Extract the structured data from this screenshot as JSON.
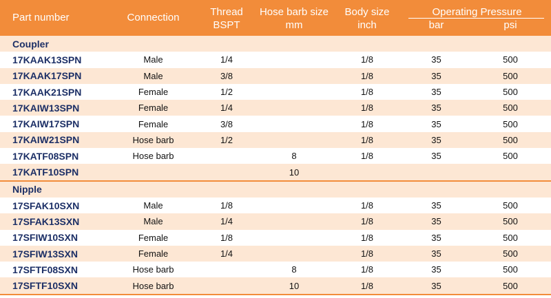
{
  "header": {
    "part_number": "Part number",
    "connection": "Connection",
    "thread_line1": "Thread",
    "thread_line2": "BSPT",
    "hose_line1": "Hose barb size",
    "hose_line2": "mm",
    "body_line1": "Body size",
    "body_line2": "inch",
    "operating_pressure": "Operating Pressure",
    "bar": "bar",
    "psi": "psi"
  },
  "colors": {
    "accent": "#f28c3a",
    "stripe": "#fde7d4",
    "part_text": "#1c2f66"
  },
  "sections": [
    {
      "title": "Coupler",
      "rows": [
        {
          "part": "17KAAK13SPN",
          "connection": "Male",
          "thread": "1/4",
          "hose": "",
          "body": "1/8",
          "bar": "35",
          "psi": "500"
        },
        {
          "part": "17KAAK17SPN",
          "connection": "Male",
          "thread": "3/8",
          "hose": "",
          "body": "1/8",
          "bar": "35",
          "psi": "500"
        },
        {
          "part": "17KAAK21SPN",
          "connection": "Female",
          "thread": "1/2",
          "hose": "",
          "body": "1/8",
          "bar": "35",
          "psi": "500"
        },
        {
          "part": "17KAIW13SPN",
          "connection": "Female",
          "thread": "1/4",
          "hose": "",
          "body": "1/8",
          "bar": "35",
          "psi": "500"
        },
        {
          "part": "17KAIW17SPN",
          "connection": "Female",
          "thread": "3/8",
          "hose": "",
          "body": "1/8",
          "bar": "35",
          "psi": "500"
        },
        {
          "part": "17KAIW21SPN",
          "connection": "Hose barb",
          "thread": "1/2",
          "hose": "",
          "body": "1/8",
          "bar": "35",
          "psi": "500"
        },
        {
          "part": "17KATF08SPN",
          "connection": "Hose barb",
          "thread": "",
          "hose": "8",
          "body": "1/8",
          "bar": "35",
          "psi": "500"
        },
        {
          "part": "17KATF10SPN",
          "connection": "",
          "thread": "",
          "hose": "10",
          "body": "",
          "bar": "",
          "psi": ""
        }
      ]
    },
    {
      "title": "Nipple",
      "rows": [
        {
          "part": "17SFAK10SXN",
          "connection": "Male",
          "thread": "1/8",
          "hose": "",
          "body": "1/8",
          "bar": "35",
          "psi": "500"
        },
        {
          "part": "17SFAK13SXN",
          "connection": "Male",
          "thread": "1/4",
          "hose": "",
          "body": "1/8",
          "bar": "35",
          "psi": "500"
        },
        {
          "part": "17SFIW10SXN",
          "connection": "Female",
          "thread": "1/8",
          "hose": "",
          "body": "1/8",
          "bar": "35",
          "psi": "500"
        },
        {
          "part": "17SFIW13SXN",
          "connection": "Female",
          "thread": "1/4",
          "hose": "",
          "body": "1/8",
          "bar": "35",
          "psi": "500"
        },
        {
          "part": "17SFTF08SXN",
          "connection": "Hose barb",
          "thread": "",
          "hose": "8",
          "body": "1/8",
          "bar": "35",
          "psi": "500"
        },
        {
          "part": "17SFTF10SXN",
          "connection": "Hose barb",
          "thread": "",
          "hose": "10",
          "body": "1/8",
          "bar": "35",
          "psi": "500"
        }
      ]
    }
  ]
}
